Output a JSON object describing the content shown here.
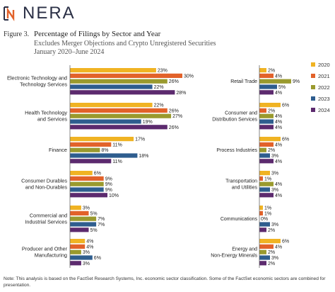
{
  "brand": {
    "name": "NERA"
  },
  "figure": {
    "label": "Figure 3.",
    "title": "Percentage of Filings by Sector and Year",
    "subtitle_lines": [
      "Excludes Merger Objections and Crypto Unregistered Securities",
      "January 2020–June 2024"
    ]
  },
  "colors": {
    "2020": "#f0b323",
    "2021": "#e2622a",
    "2022": "#9a9a2e",
    "2023": "#2e5d8e",
    "2024": "#5c2a6e"
  },
  "note": "Note: This analysis is based on the FactSet Research Systems, Inc. economic sector classification. Some of the FactSet economic sectors are combined for presentation.",
  "chart_data": {
    "type": "bar",
    "orientation": "horizontal",
    "value_unit": "%",
    "legend": {
      "position": "right",
      "entries": [
        "2020",
        "2021",
        "2022",
        "2023",
        "2024"
      ]
    },
    "panels": [
      {
        "name": "left",
        "categories": [
          {
            "label_lines": [
              "Electronic Technology and",
              "Technology Services"
            ],
            "values": [
              23,
              30,
              26,
              22,
              28
            ]
          },
          {
            "label_lines": [
              "Health Technology",
              "and Services"
            ],
            "values": [
              22,
              26,
              27,
              19,
              26
            ]
          },
          {
            "label_lines": [
              "Finance"
            ],
            "values": [
              17,
              11,
              8,
              18,
              11
            ]
          },
          {
            "label_lines": [
              "Consumer Durables",
              "and Non-Durables"
            ],
            "values": [
              6,
              9,
              9,
              9,
              10
            ]
          },
          {
            "label_lines": [
              "Commercial and",
              "Industrial Services"
            ],
            "values": [
              3,
              5,
              7,
              7,
              5
            ]
          },
          {
            "label_lines": [
              "Producer and Other",
              "Manufacturing"
            ],
            "values": [
              4,
              4,
              3,
              6,
              3
            ]
          }
        ]
      },
      {
        "name": "right",
        "categories": [
          {
            "label_lines": [
              "Retail Trade"
            ],
            "values": [
              2,
              4,
              9,
              5,
              4
            ]
          },
          {
            "label_lines": [
              "Consumer and",
              "Distribution Services"
            ],
            "values": [
              6,
              2,
              4,
              4,
              4
            ]
          },
          {
            "label_lines": [
              "Process Industries"
            ],
            "values": [
              6,
              4,
              2,
              3,
              4
            ]
          },
          {
            "label_lines": [
              "Transportation",
              "and Utilities"
            ],
            "values": [
              3,
              1,
              4,
              3,
              4
            ]
          },
          {
            "label_lines": [
              "Communications"
            ],
            "values": [
              1,
              1,
              0,
              3,
              2
            ]
          },
          {
            "label_lines": [
              "Energy and",
              "Non-Energy Minerals"
            ],
            "values": [
              6,
              4,
              2,
              3,
              2
            ]
          }
        ]
      }
    ]
  }
}
